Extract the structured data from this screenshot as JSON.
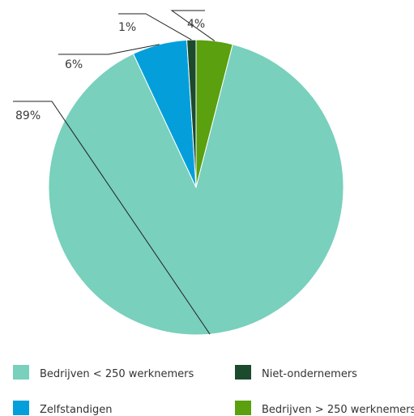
{
  "chart_data": {
    "type": "pie",
    "categories": [
      "Bedrijven > 250 werknemers",
      "Bedrijven < 250 werknemers",
      "Zelfstandigen",
      "Niet-ondernemers"
    ],
    "values": [
      4,
      89,
      6,
      1
    ],
    "value_labels": [
      "4%",
      "89%",
      "6%",
      "1%"
    ],
    "colors": [
      "#5aa00f",
      "#78d0bd",
      "#049fdb",
      "#1b4a2c"
    ],
    "legend_placement": "bottom",
    "legend": [
      {
        "label": "Bedrijven < 250 werknemers",
        "color": "#78d0bd"
      },
      {
        "label": "Niet-ondernemers",
        "color": "#1b4a2c"
      },
      {
        "label": "Zelfstandigen",
        "color": "#049fdb"
      },
      {
        "label": "Bedrijven > 250 werknemers",
        "color": "#5aa00f"
      }
    ]
  }
}
